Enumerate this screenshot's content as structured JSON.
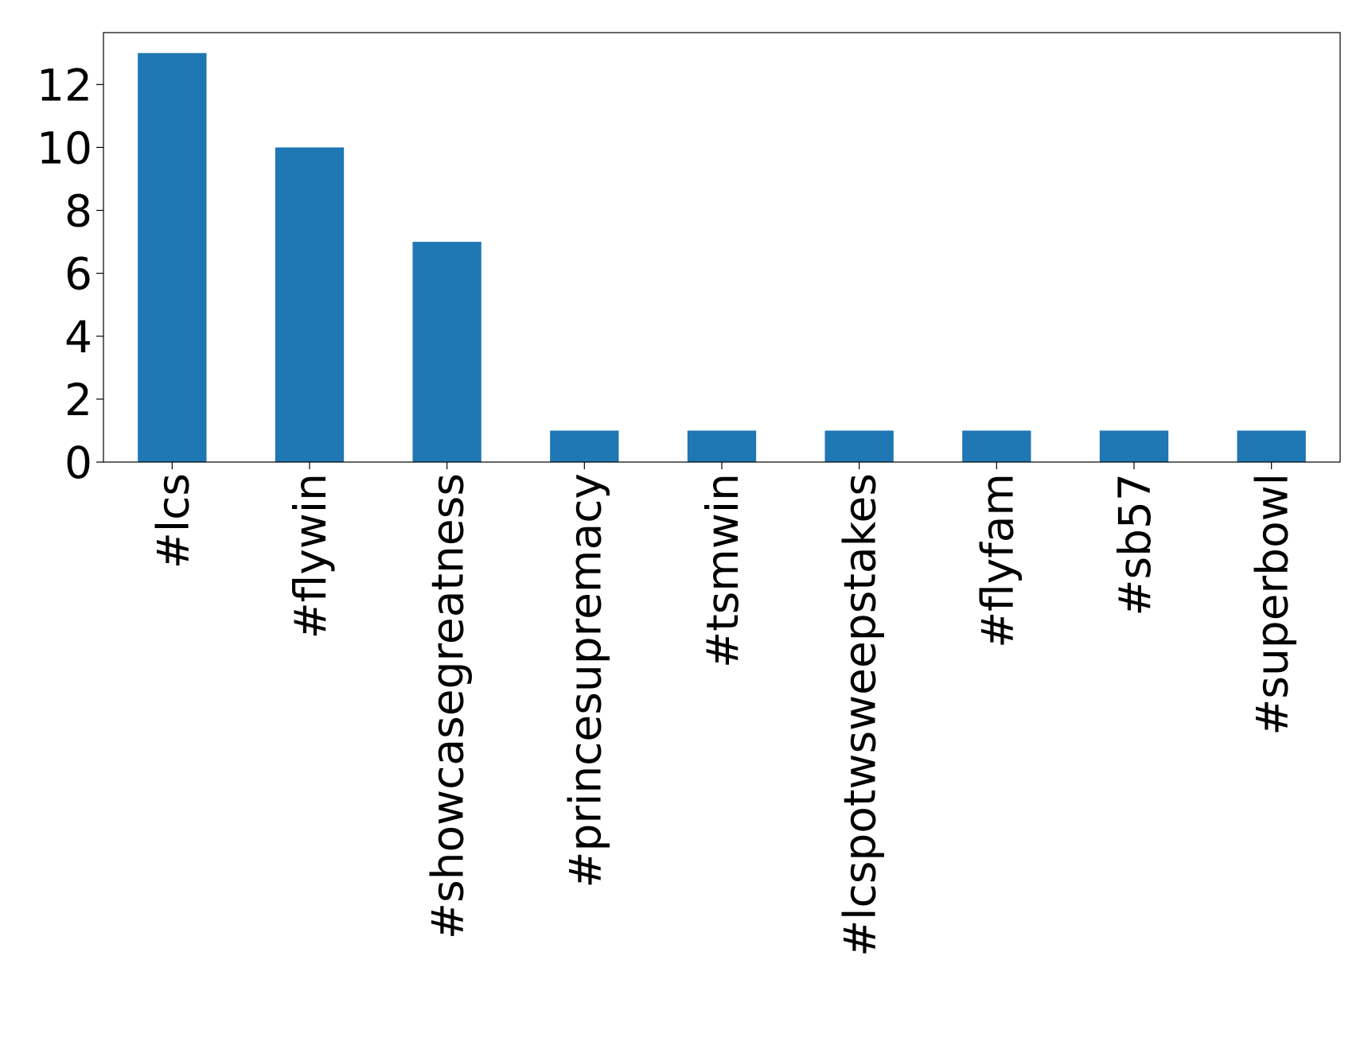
{
  "chart_data": {
    "type": "bar",
    "categories": [
      "#lcs",
      "#flywin",
      "#showcasegreatness",
      "#princesupremacy",
      "#tsmwin",
      "#lcspotwsweepstakes",
      "#flyfam",
      "#sb57",
      "#superbowl"
    ],
    "values": [
      13,
      10,
      7,
      1,
      1,
      1,
      1,
      1,
      1
    ],
    "color": "#1f77b4",
    "ylim": [
      0,
      13.65
    ],
    "yticks": [
      0,
      2,
      4,
      6,
      8,
      10,
      12
    ],
    "grid": false
  }
}
